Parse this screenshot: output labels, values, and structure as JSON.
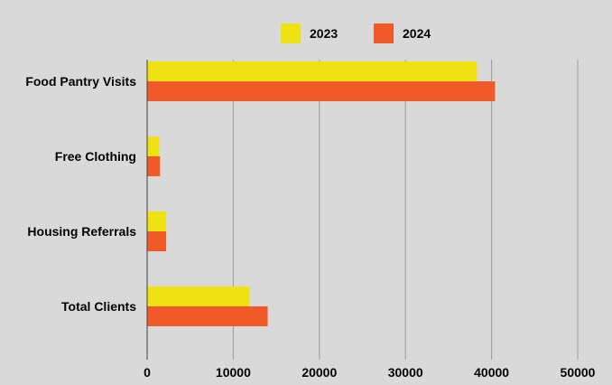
{
  "chart_data": {
    "type": "bar",
    "orientation": "horizontal",
    "categories": [
      "Food Pantry Visits",
      "Free Clothing",
      "Housing Referrals",
      "Total Clients"
    ],
    "series": [
      {
        "name": "2023",
        "color": "#eee212",
        "values": [
          38300,
          1400,
          2200,
          11900
        ]
      },
      {
        "name": "2024",
        "color": "#f05a28",
        "values": [
          40400,
          1500,
          2200,
          14000
        ]
      }
    ],
    "x_ticks": [
      "0",
      "10000",
      "20000",
      "30000",
      "40000",
      "50000"
    ],
    "xlim": [
      0,
      50000
    ],
    "title": "",
    "xlabel": "",
    "ylabel": "",
    "legend_position": "top",
    "grid": "vertical",
    "background": "#d9d9d9"
  }
}
